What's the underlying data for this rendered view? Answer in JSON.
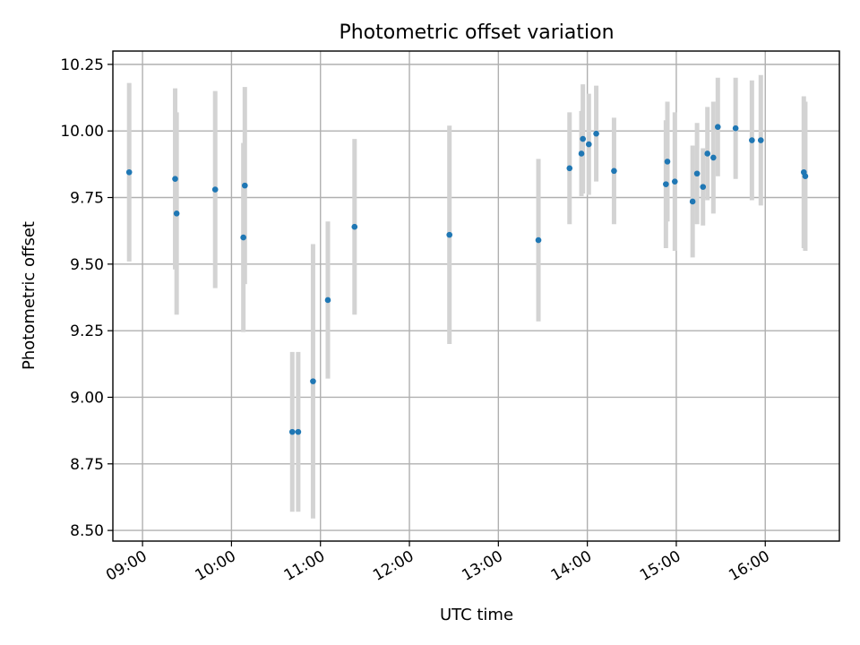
{
  "chart_data": {
    "type": "scatter",
    "title": "Photometric offset variation",
    "xlabel": "UTC time",
    "ylabel": "Photometric offset",
    "xlim": [
      "08:40",
      "16:50"
    ],
    "ylim": [
      8.46,
      10.3
    ],
    "x_ticks": [
      "09:00",
      "10:00",
      "11:00",
      "12:00",
      "13:00",
      "14:00",
      "15:00",
      "16:00"
    ],
    "y_ticks": [
      "8.50",
      "8.75",
      "9.00",
      "9.25",
      "9.50",
      "9.75",
      "10.00",
      "10.25"
    ],
    "grid": true,
    "marker_color": "#1f77b4",
    "errorbar_color": "#d3d3d3",
    "points": [
      {
        "x": "08:51",
        "y": 9.845,
        "err": 0.335
      },
      {
        "x": "09:22",
        "y": 9.82,
        "err": 0.34
      },
      {
        "x": "09:23",
        "y": 9.69,
        "err": 0.38
      },
      {
        "x": "09:49",
        "y": 9.78,
        "err": 0.37
      },
      {
        "x": "10:08",
        "y": 9.6,
        "err": 0.355
      },
      {
        "x": "10:09",
        "y": 9.795,
        "err": 0.37
      },
      {
        "x": "10:41",
        "y": 8.87,
        "err": 0.3
      },
      {
        "x": "10:45",
        "y": 8.87,
        "err": 0.3
      },
      {
        "x": "10:55",
        "y": 9.06,
        "err": 0.515
      },
      {
        "x": "11:05",
        "y": 9.365,
        "err": 0.295
      },
      {
        "x": "11:23",
        "y": 9.64,
        "err": 0.33
      },
      {
        "x": "12:27",
        "y": 9.61,
        "err": 0.41
      },
      {
        "x": "13:27",
        "y": 9.59,
        "err": 0.305
      },
      {
        "x": "13:48",
        "y": 9.86,
        "err": 0.21
      },
      {
        "x": "13:56",
        "y": 9.915,
        "err": 0.16
      },
      {
        "x": "13:57",
        "y": 9.97,
        "err": 0.205
      },
      {
        "x": "14:01",
        "y": 9.95,
        "err": 0.19
      },
      {
        "x": "14:06",
        "y": 9.99,
        "err": 0.18
      },
      {
        "x": "14:18",
        "y": 9.85,
        "err": 0.2
      },
      {
        "x": "14:53",
        "y": 9.8,
        "err": 0.24
      },
      {
        "x": "14:54",
        "y": 9.885,
        "err": 0.225
      },
      {
        "x": "14:59",
        "y": 9.81,
        "err": 0.26
      },
      {
        "x": "15:11",
        "y": 9.735,
        "err": 0.21
      },
      {
        "x": "15:14",
        "y": 9.84,
        "err": 0.19
      },
      {
        "x": "15:18",
        "y": 9.79,
        "err": 0.145
      },
      {
        "x": "15:21",
        "y": 9.915,
        "err": 0.175
      },
      {
        "x": "15:25",
        "y": 9.9,
        "err": 0.21
      },
      {
        "x": "15:28",
        "y": 10.015,
        "err": 0.185
      },
      {
        "x": "15:40",
        "y": 10.01,
        "err": 0.19
      },
      {
        "x": "15:51",
        "y": 9.965,
        "err": 0.225
      },
      {
        "x": "15:57",
        "y": 9.965,
        "err": 0.245
      },
      {
        "x": "16:26",
        "y": 9.845,
        "err": 0.285
      },
      {
        "x": "16:27",
        "y": 9.83,
        "err": 0.28
      }
    ]
  }
}
